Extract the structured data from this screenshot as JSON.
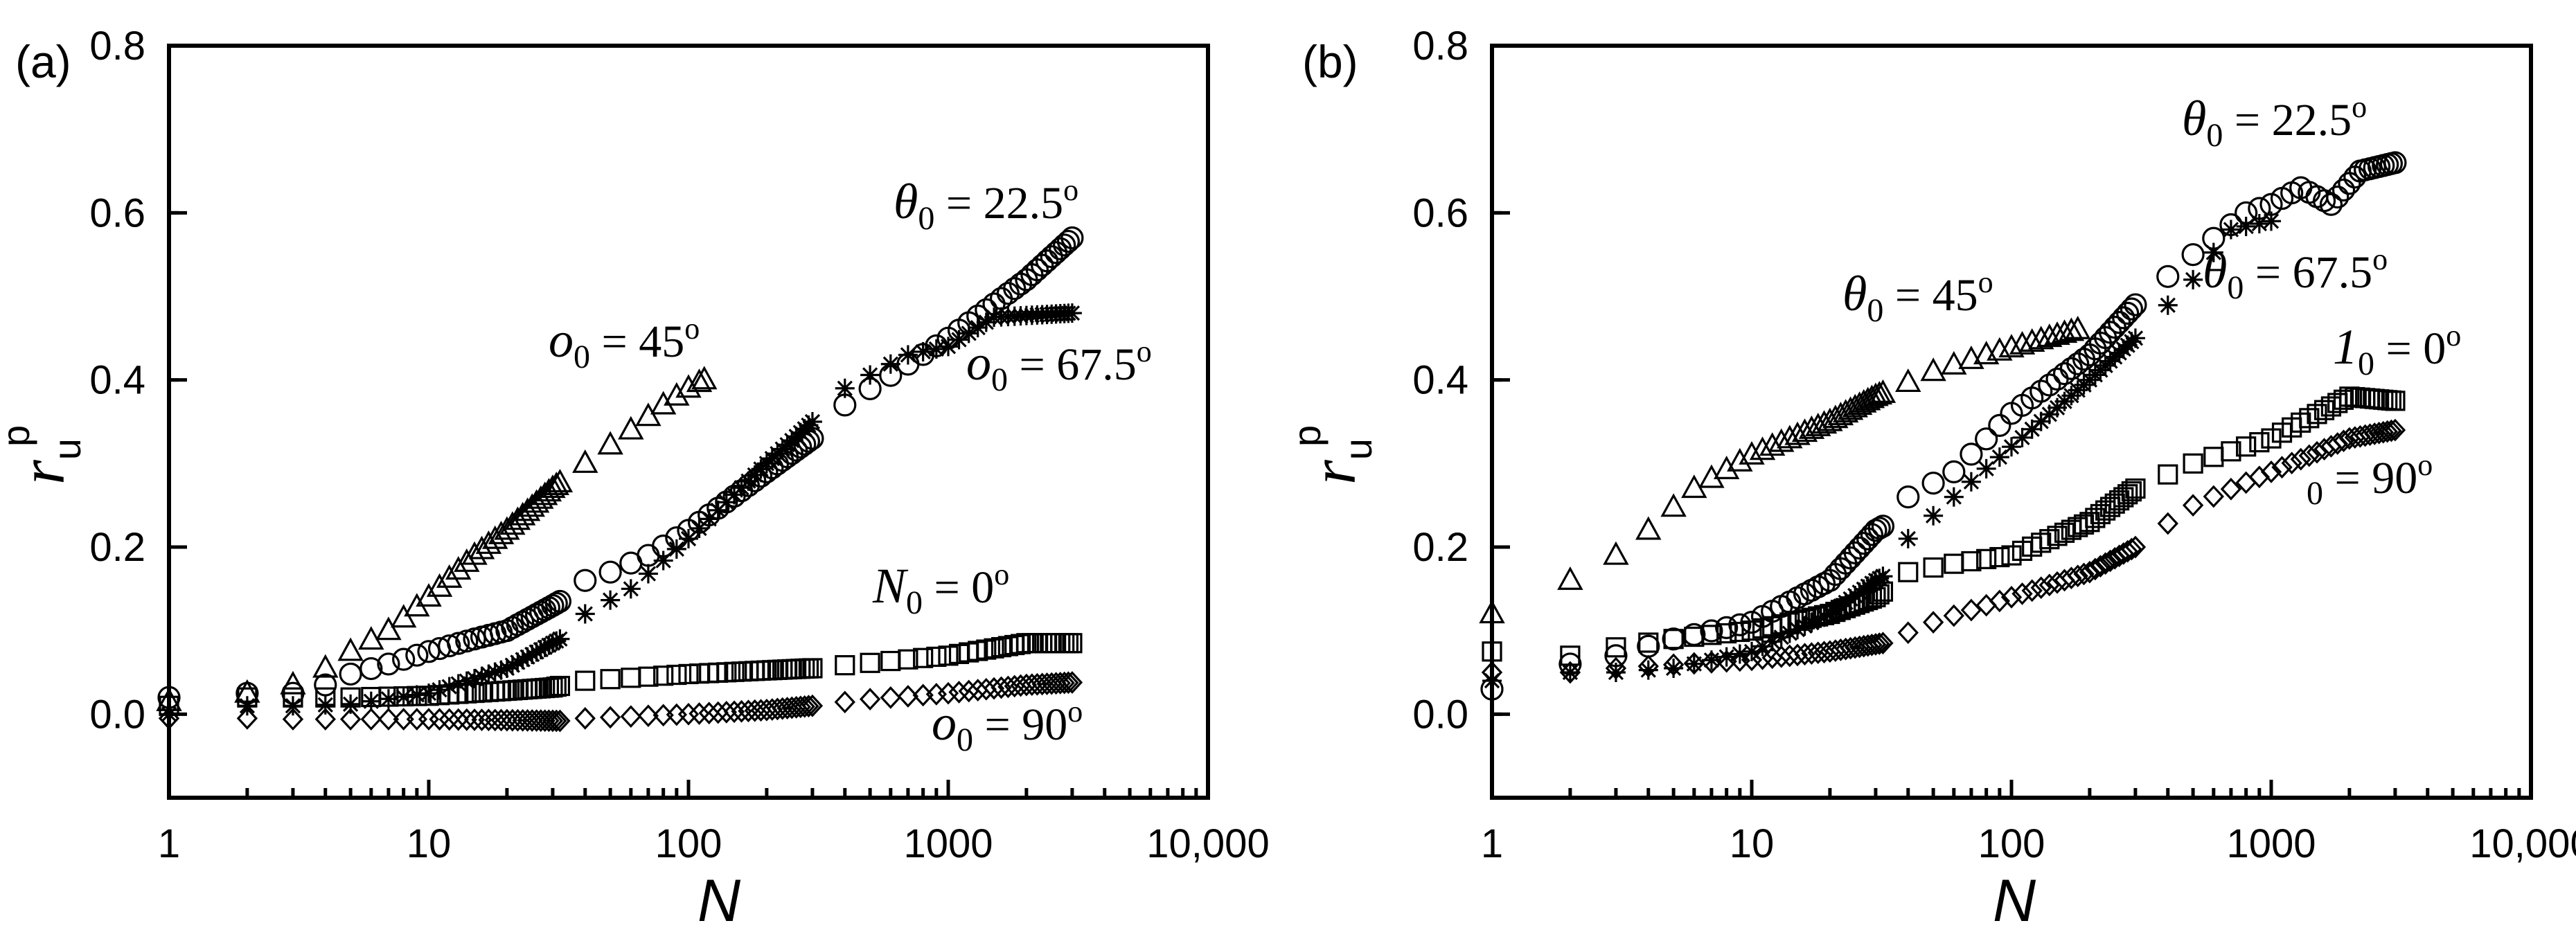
{
  "chart_data": [
    {
      "panel_label": "(a)",
      "type": "scatter",
      "xscale": "log",
      "xlim": [
        1,
        10000
      ],
      "ylim": [
        -0.1,
        0.8
      ],
      "xlabel": "N",
      "ylabel": {
        "base": "r",
        "sub": "u",
        "sup": "p"
      },
      "xticks": [
        {
          "v": 1,
          "label": "1"
        },
        {
          "v": 10,
          "label": "10"
        },
        {
          "v": 100,
          "label": "100"
        },
        {
          "v": 1000,
          "label": "1000"
        },
        {
          "v": 10000,
          "label": "10,000"
        }
      ],
      "yticks": [
        {
          "v": 0.0,
          "label": "0.0"
        },
        {
          "v": 0.2,
          "label": "0.2"
        },
        {
          "v": 0.4,
          "label": "0.4"
        },
        {
          "v": 0.6,
          "label": "0.6"
        },
        {
          "v": 0.8,
          "label": "0.8"
        }
      ],
      "series": [
        {
          "name": "θ0 = 0°",
          "marker": "square",
          "start": 1,
          "end": 3000,
          "points": [
            [
              1,
              0.01
            ],
            [
              2,
              0.02
            ],
            [
              3,
              0.02
            ],
            [
              5,
              0.02
            ],
            [
              10,
              0.022
            ],
            [
              20,
              0.028
            ],
            [
              30,
              0.032
            ],
            [
              40,
              0.04
            ],
            [
              100,
              0.048
            ],
            [
              300,
              0.055
            ],
            [
              1000,
              0.07
            ],
            [
              2000,
              0.085
            ],
            [
              3000,
              0.085
            ]
          ]
        },
        {
          "name": "θ0 = 22.5°",
          "marker": "circle",
          "start": 1,
          "end": 3000,
          "points": [
            [
              1,
              0.02
            ],
            [
              2,
              0.025
            ],
            [
              3,
              0.025
            ],
            [
              4,
              0.035
            ],
            [
              5,
              0.048
            ],
            [
              7,
              0.06
            ],
            [
              10,
              0.075
            ],
            [
              15,
              0.09
            ],
            [
              20,
              0.1
            ],
            [
              30,
              0.13
            ],
            [
              32,
              0.135
            ],
            [
              40,
              0.16
            ],
            [
              50,
              0.17
            ],
            [
              70,
              0.19
            ],
            [
              100,
              0.22
            ],
            [
              200,
              0.29
            ],
            [
              300,
              0.33
            ],
            [
              400,
              0.37
            ],
            [
              1000,
              0.45
            ],
            [
              2000,
              0.52
            ],
            [
              3000,
              0.57
            ]
          ]
        },
        {
          "name": "θ0 = 45°",
          "marker": "triangle",
          "start": 1,
          "end": 115,
          "points": [
            [
              1,
              0.015
            ],
            [
              2,
              0.025
            ],
            [
              3,
              0.035
            ],
            [
              4,
              0.055
            ],
            [
              5,
              0.075
            ],
            [
              7,
              0.1
            ],
            [
              10,
              0.14
            ],
            [
              15,
              0.19
            ],
            [
              20,
              0.22
            ],
            [
              30,
              0.27
            ],
            [
              40,
              0.3
            ],
            [
              60,
              0.34
            ],
            [
              80,
              0.37
            ],
            [
              100,
              0.39
            ],
            [
              115,
              0.4
            ]
          ]
        },
        {
          "name": "θ0 = 67.5°",
          "marker": "asterisk",
          "start": 1,
          "end": 3000,
          "points": [
            [
              1,
              0.0
            ],
            [
              2,
              0.01
            ],
            [
              3,
              0.01
            ],
            [
              5,
              0.012
            ],
            [
              10,
              0.025
            ],
            [
              20,
              0.055
            ],
            [
              30,
              0.085
            ],
            [
              32,
              0.09
            ],
            [
              40,
              0.12
            ],
            [
              60,
              0.15
            ],
            [
              100,
              0.21
            ],
            [
              200,
              0.3
            ],
            [
              300,
              0.35
            ],
            [
              400,
              0.39
            ],
            [
              700,
              0.43
            ],
            [
              1000,
              0.44
            ],
            [
              1500,
              0.475
            ],
            [
              3000,
              0.48
            ]
          ]
        },
        {
          "name": "θ0 = 90°",
          "marker": "diamond",
          "start": 1,
          "end": 3000,
          "points": [
            [
              1,
              -0.005
            ],
            [
              2,
              -0.005
            ],
            [
              3,
              -0.006
            ],
            [
              10,
              -0.006
            ],
            [
              32,
              -0.008
            ],
            [
              40,
              -0.005
            ],
            [
              100,
              0.0
            ],
            [
              200,
              0.005
            ],
            [
              300,
              0.01
            ],
            [
              500,
              0.018
            ],
            [
              1000,
              0.025
            ],
            [
              2000,
              0.035
            ],
            [
              3000,
              0.038
            ]
          ]
        }
      ],
      "annotations": [
        {
          "series": "θ0 = 22.5°",
          "sym": "θ",
          "sub": "0",
          "text": " = 22.5",
          "sup": "o"
        },
        {
          "series": "θ0 = 45°",
          "sym": "o",
          "sub": "0",
          "text": " = 45",
          "sup": "o"
        },
        {
          "series": "θ0 = 67.5°",
          "sym": "o",
          "sub": "0",
          "text": " = 67.5",
          "sup": "o"
        },
        {
          "series": "θ0 = 0°",
          "sym": "N",
          "sub": "0",
          "text": " = 0",
          "sup": "o"
        },
        {
          "series": "θ0 = 90°",
          "sym": "o",
          "sub": "0",
          "text": " = 90",
          "sup": "o"
        }
      ]
    },
    {
      "panel_label": "(b)",
      "type": "scatter",
      "xscale": "log",
      "xlim": [
        1,
        10000
      ],
      "ylim": [
        -0.1,
        0.8
      ],
      "xlabel": "N",
      "ylabel": {
        "base": "r",
        "sub": "u",
        "sup": "p"
      },
      "xticks": [
        {
          "v": 1,
          "label": "1"
        },
        {
          "v": 10,
          "label": "10"
        },
        {
          "v": 100,
          "label": "100"
        },
        {
          "v": 1000,
          "label": "1000"
        },
        {
          "v": 10000,
          "label": "10,000"
        }
      ],
      "yticks": [
        {
          "v": 0.0,
          "label": "0.0"
        },
        {
          "v": 0.2,
          "label": "0.2"
        },
        {
          "v": 0.4,
          "label": "0.4"
        },
        {
          "v": 0.6,
          "label": "0.6"
        },
        {
          "v": 0.8,
          "label": "0.8"
        }
      ],
      "series": [
        {
          "name": "θ0 = 0°",
          "marker": "square",
          "start": 1,
          "end": 3000,
          "points": [
            [
              1,
              0.075
            ],
            [
              2,
              0.07
            ],
            [
              3,
              0.08
            ],
            [
              5,
              0.09
            ],
            [
              10,
              0.1
            ],
            [
              20,
              0.12
            ],
            [
              30,
              0.14
            ],
            [
              40,
              0.17
            ],
            [
              60,
              0.18
            ],
            [
              100,
              0.19
            ],
            [
              200,
              0.23
            ],
            [
              300,
              0.27
            ],
            [
              500,
              0.3
            ],
            [
              1000,
              0.33
            ],
            [
              2000,
              0.38
            ],
            [
              3000,
              0.375
            ]
          ]
        },
        {
          "name": "θ0 = 22.5°",
          "marker": "circle",
          "start": 1,
          "end": 3000,
          "points": [
            [
              1,
              0.03
            ],
            [
              2,
              0.06
            ],
            [
              3,
              0.07
            ],
            [
              5,
              0.09
            ],
            [
              10,
              0.11
            ],
            [
              20,
              0.16
            ],
            [
              30,
              0.22
            ],
            [
              32,
              0.225
            ],
            [
              40,
              0.26
            ],
            [
              60,
              0.29
            ],
            [
              100,
              0.36
            ],
            [
              200,
              0.43
            ],
            [
              300,
              0.49
            ],
            [
              500,
              0.55
            ],
            [
              800,
              0.6
            ],
            [
              1000,
              0.61
            ],
            [
              1300,
              0.63
            ],
            [
              1700,
              0.61
            ],
            [
              2200,
              0.65
            ],
            [
              3000,
              0.66
            ]
          ]
        },
        {
          "name": "θ0 = 45°",
          "marker": "triangle",
          "start": 1,
          "end": 180,
          "points": [
            [
              1,
              0.12
            ],
            [
              2,
              0.16
            ],
            [
              3,
              0.19
            ],
            [
              4,
              0.22
            ],
            [
              6,
              0.27
            ],
            [
              10,
              0.31
            ],
            [
              20,
              0.35
            ],
            [
              30,
              0.38
            ],
            [
              50,
              0.41
            ],
            [
              80,
              0.43
            ],
            [
              120,
              0.445
            ],
            [
              180,
              0.46
            ]
          ]
        },
        {
          "name": "θ0 = 67.5°",
          "marker": "asterisk",
          "start": 1,
          "end": 1000,
          "points": [
            [
              1,
              0.04
            ],
            [
              2,
              0.05
            ],
            [
              3,
              0.05
            ],
            [
              5,
              0.055
            ],
            [
              10,
              0.075
            ],
            [
              20,
              0.12
            ],
            [
              30,
              0.16
            ],
            [
              32,
              0.165
            ],
            [
              40,
              0.21
            ],
            [
              60,
              0.26
            ],
            [
              100,
              0.32
            ],
            [
              200,
              0.4
            ],
            [
              300,
              0.45
            ],
            [
              500,
              0.52
            ],
            [
              700,
              0.58
            ],
            [
              1000,
              0.59
            ]
          ]
        },
        {
          "name": "θ0 = 90°",
          "marker": "diamond",
          "start": 1,
          "end": 3000,
          "points": [
            [
              1,
              0.05
            ],
            [
              2,
              0.05
            ],
            [
              3,
              0.055
            ],
            [
              10,
              0.065
            ],
            [
              20,
              0.075
            ],
            [
              32,
              0.085
            ],
            [
              50,
              0.11
            ],
            [
              100,
              0.14
            ],
            [
              200,
              0.17
            ],
            [
              300,
              0.2
            ],
            [
              500,
              0.25
            ],
            [
              1000,
              0.29
            ],
            [
              2000,
              0.33
            ],
            [
              3000,
              0.34
            ]
          ]
        }
      ],
      "annotations": [
        {
          "series": "θ0 = 22.5°",
          "sym": "θ",
          "sub": "0",
          "text": " = 22.5",
          "sup": "o"
        },
        {
          "series": "θ0 = 45°",
          "sym": "θ",
          "sub": "0",
          "text": " = 45",
          "sup": "o"
        },
        {
          "series": "θ0 = 67.5°",
          "sym": "θ",
          "sub": "0",
          "text": " = 67.5",
          "sup": "o"
        },
        {
          "series": "θ0 = 0°",
          "sym": "1",
          "sub": "0",
          "text": " = 0",
          "sup": "o"
        },
        {
          "series": "θ0 = 90°",
          "sym": "",
          "sub": "0",
          "text": " = 90",
          "sup": "o"
        }
      ]
    }
  ]
}
